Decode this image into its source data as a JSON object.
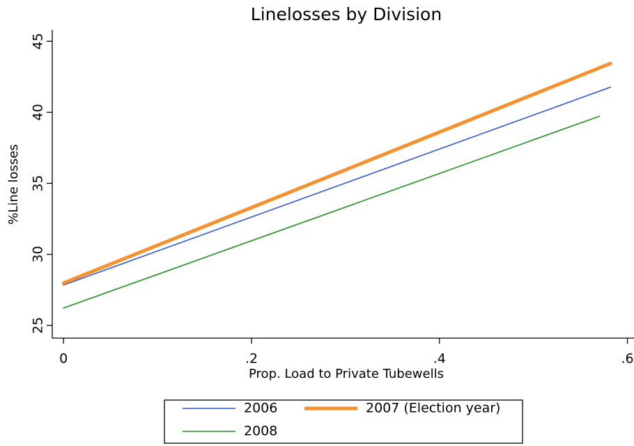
{
  "chart_data": {
    "type": "line",
    "title": "Linelosses by Division",
    "x_label": "Prop. Load to Private Tubewells",
    "y_label": "%Line losses",
    "xlim": [
      -0.012,
      0.607
    ],
    "ylim": [
      24.1,
      45.8
    ],
    "xticks": [
      0,
      {
        "value": 0.2,
        "label": ".2"
      },
      {
        "value": 0.4,
        "label": ".4"
      },
      {
        "value": 0.6,
        "label": ".6"
      }
    ],
    "yticks": [
      25,
      30,
      35,
      40,
      45
    ],
    "legend": "bottom",
    "series": [
      {
        "name": "2006",
        "color": "#2b50d9",
        "line_width": 1.6,
        "x": [
          0,
          0.582
        ],
        "values": [
          27.84,
          41.77
        ]
      },
      {
        "name": "2007 (Election year)",
        "color": "#f5922f",
        "line_width": 5,
        "x": [
          0,
          0.582
        ],
        "values": [
          27.98,
          43.44
        ]
      },
      {
        "name": "2008",
        "color": "#1f8f1f",
        "line_width": 1.6,
        "x": [
          0,
          0.57
        ],
        "values": [
          26.22,
          39.72
        ]
      }
    ]
  }
}
